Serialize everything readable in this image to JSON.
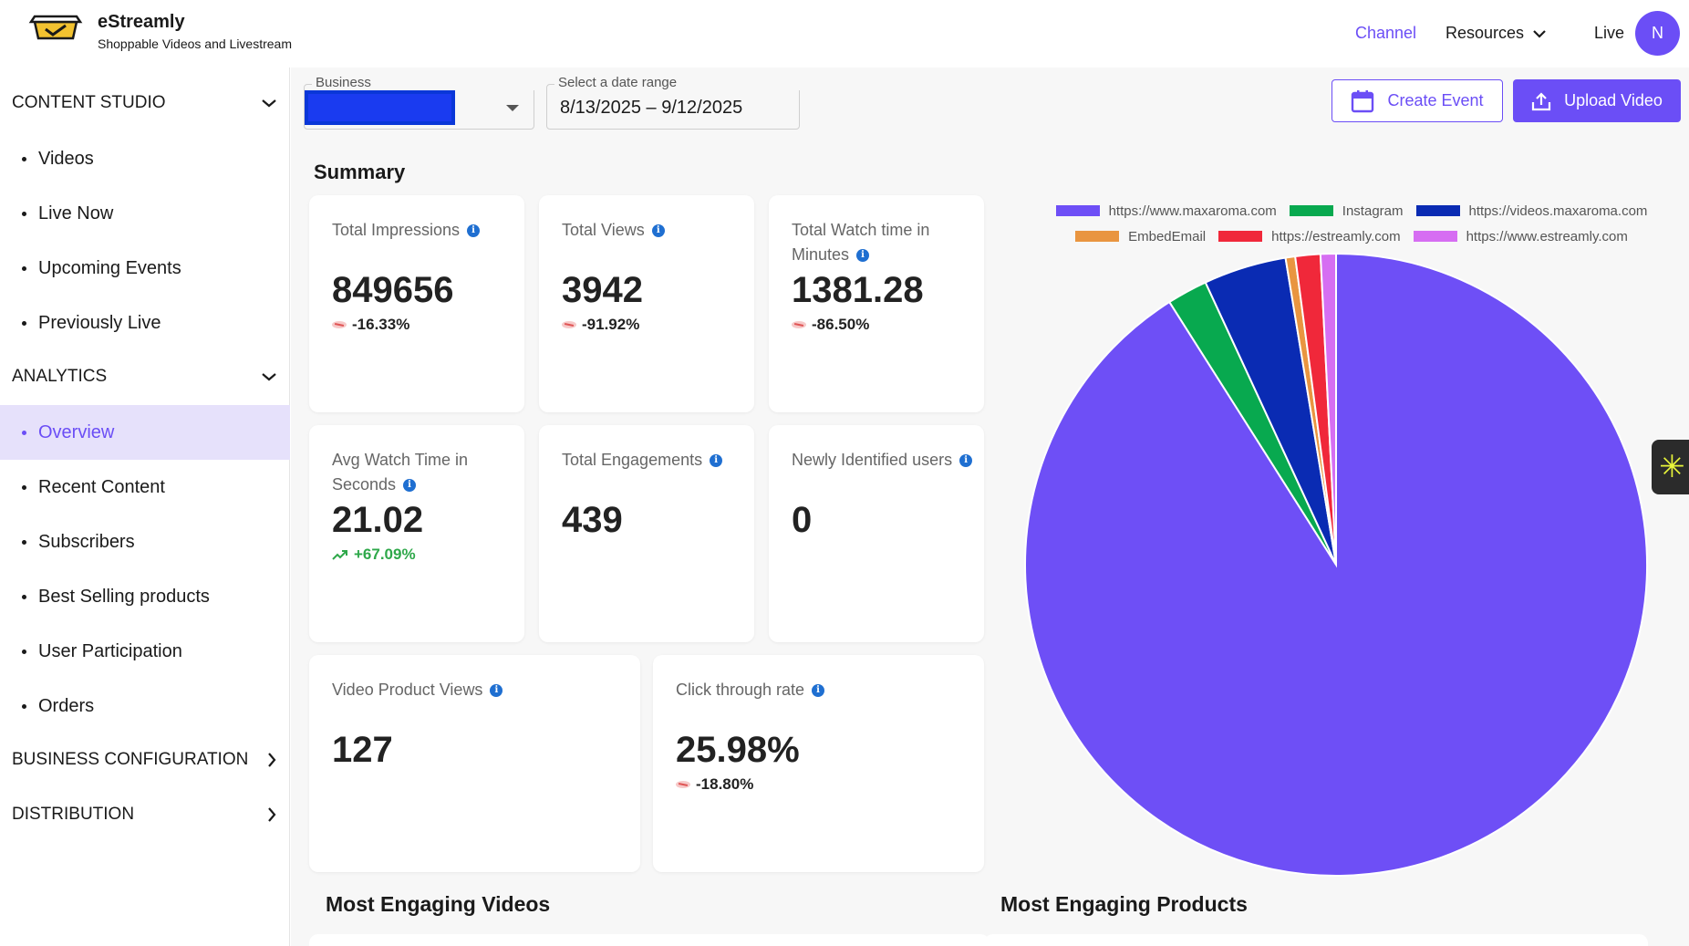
{
  "brand": {
    "name": "eStreamly",
    "tagline": "Shoppable Videos and Livestream"
  },
  "nav": {
    "channel": "Channel",
    "resources": "Resources",
    "live": "Live",
    "avatar_initial": "N"
  },
  "sidebar": {
    "content_studio": {
      "title": "CONTENT STUDIO",
      "items": [
        "Videos",
        "Live Now",
        "Upcoming Events",
        "Previously Live"
      ]
    },
    "analytics": {
      "title": "ANALYTICS",
      "items": [
        "Overview",
        "Recent Content",
        "Subscribers",
        "Best Selling products",
        "User Participation",
        "Orders"
      ]
    },
    "business_configuration": {
      "title": "BUSINESS CONFIGURATION"
    },
    "distribution": {
      "title": "DISTRIBUTION"
    }
  },
  "filters": {
    "business_label": "Business",
    "date_label": "Select a date range",
    "date_value": "8/13/2025 – 9/12/2025"
  },
  "actions": {
    "create_event": "Create Event",
    "upload_video": "Upload Video"
  },
  "summary": {
    "title": "Summary",
    "cards": [
      {
        "label": "Total Impressions",
        "value": "849656",
        "change": "-16.33%"
      },
      {
        "label": "Total Views",
        "value": "3942",
        "change": "-91.92%"
      },
      {
        "label": "Total Watch time in Minutes",
        "value": "1381.28",
        "change": "-86.50%"
      },
      {
        "label": "Avg Watch Time in Seconds",
        "value": "21.02",
        "change": "+67.09%"
      },
      {
        "label": "Total Engagements",
        "value": "439"
      },
      {
        "label": "Newly Identified users",
        "value": "0"
      },
      {
        "label": "Video Product Views",
        "value": "127"
      },
      {
        "label": "Click through rate",
        "value": "25.98%",
        "change": "-18.80%"
      }
    ]
  },
  "sections": {
    "most_engaging_videos": "Most Engaging Videos",
    "most_engaging_products": "Most Engaging Products"
  },
  "chart_data": {
    "type": "pie",
    "title": "",
    "legend_position": "top",
    "slices": [
      {
        "label": "https://www.maxaroma.com",
        "value": 91.0,
        "color": "#6e4ff6"
      },
      {
        "label": "Instagram",
        "value": 2.1,
        "color": "#08a94f"
      },
      {
        "label": "https://videos.maxaroma.com",
        "value": 4.3,
        "color": "#0a2bb3"
      },
      {
        "label": "EmbedEmail",
        "value": 0.5,
        "color": "#e99540"
      },
      {
        "label": "https://estreamly.com",
        "value": 1.3,
        "color": "#f0283a"
      },
      {
        "label": "https://www.estreamly.com",
        "value": 0.8,
        "color": "#d66ef2"
      }
    ]
  }
}
